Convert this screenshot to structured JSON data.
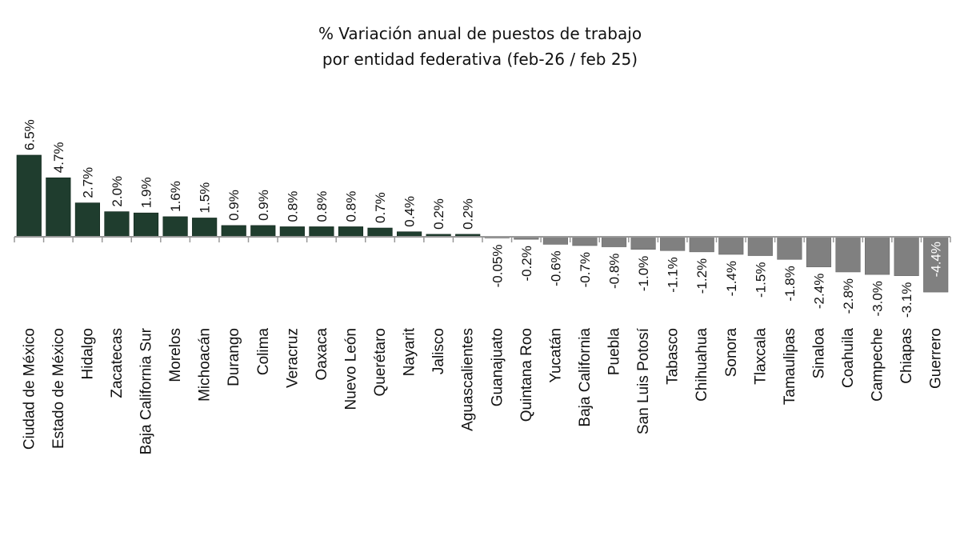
{
  "chart_data": {
    "type": "bar",
    "title": "% Variación anual de puestos de trabajo",
    "subtitle": "por entidad federativa (feb-26 / feb 25)",
    "xlabel": "",
    "ylabel": "",
    "grid": false,
    "legend": "none",
    "colors": {
      "positive": "#1f3d2e",
      "negative": "#808080",
      "axis": "#999999"
    },
    "categories": [
      "Ciudad de México",
      "Estado de México",
      "Hidalgo",
      "Zacatecas",
      "Baja California Sur",
      "Morelos",
      "Michoacán",
      "Durango",
      "Colima",
      "Veracruz",
      "Oaxaca",
      "Nuevo León",
      "Querétaro",
      "Nayarit",
      "Jalisco",
      "Aguascalientes",
      "Guanajuato",
      "Quintana Roo",
      "Yucatán",
      "Baja California",
      "Puebla",
      "San Luis Potosí",
      "Tabasco",
      "Chihuahua",
      "Sonora",
      "Tlaxcala",
      "Tamaulipas",
      "Sinaloa",
      "Coahuila",
      "Campeche",
      "Chiapas",
      "Guerrero"
    ],
    "values": [
      6.5,
      4.7,
      2.7,
      2.0,
      1.9,
      1.6,
      1.5,
      0.9,
      0.9,
      0.8,
      0.8,
      0.8,
      0.7,
      0.4,
      0.2,
      0.2,
      -0.05,
      -0.2,
      -0.6,
      -0.7,
      -0.8,
      -1.0,
      -1.1,
      -1.2,
      -1.4,
      -1.5,
      -1.8,
      -2.4,
      -2.8,
      -3.0,
      -3.1,
      -4.4
    ],
    "data_labels": [
      "6.5%",
      "4.7%",
      "2.7%",
      "2.0%",
      "1.9%",
      "1.6%",
      "1.5%",
      "0.9%",
      "0.9%",
      "0.8%",
      "0.8%",
      "0.8%",
      "0.7%",
      "0.4%",
      "0.2%",
      "0.2%",
      "-0.05%",
      "-0.2%",
      "-0.6%",
      "-0.7%",
      "-0.8%",
      "-1.0%",
      "-1.1%",
      "-1.2%",
      "-1.4%",
      "-1.5%",
      "-1.8%",
      "-2.4%",
      "-2.8%",
      "-3.0%",
      "-3.1%",
      "-4.4%"
    ]
  }
}
